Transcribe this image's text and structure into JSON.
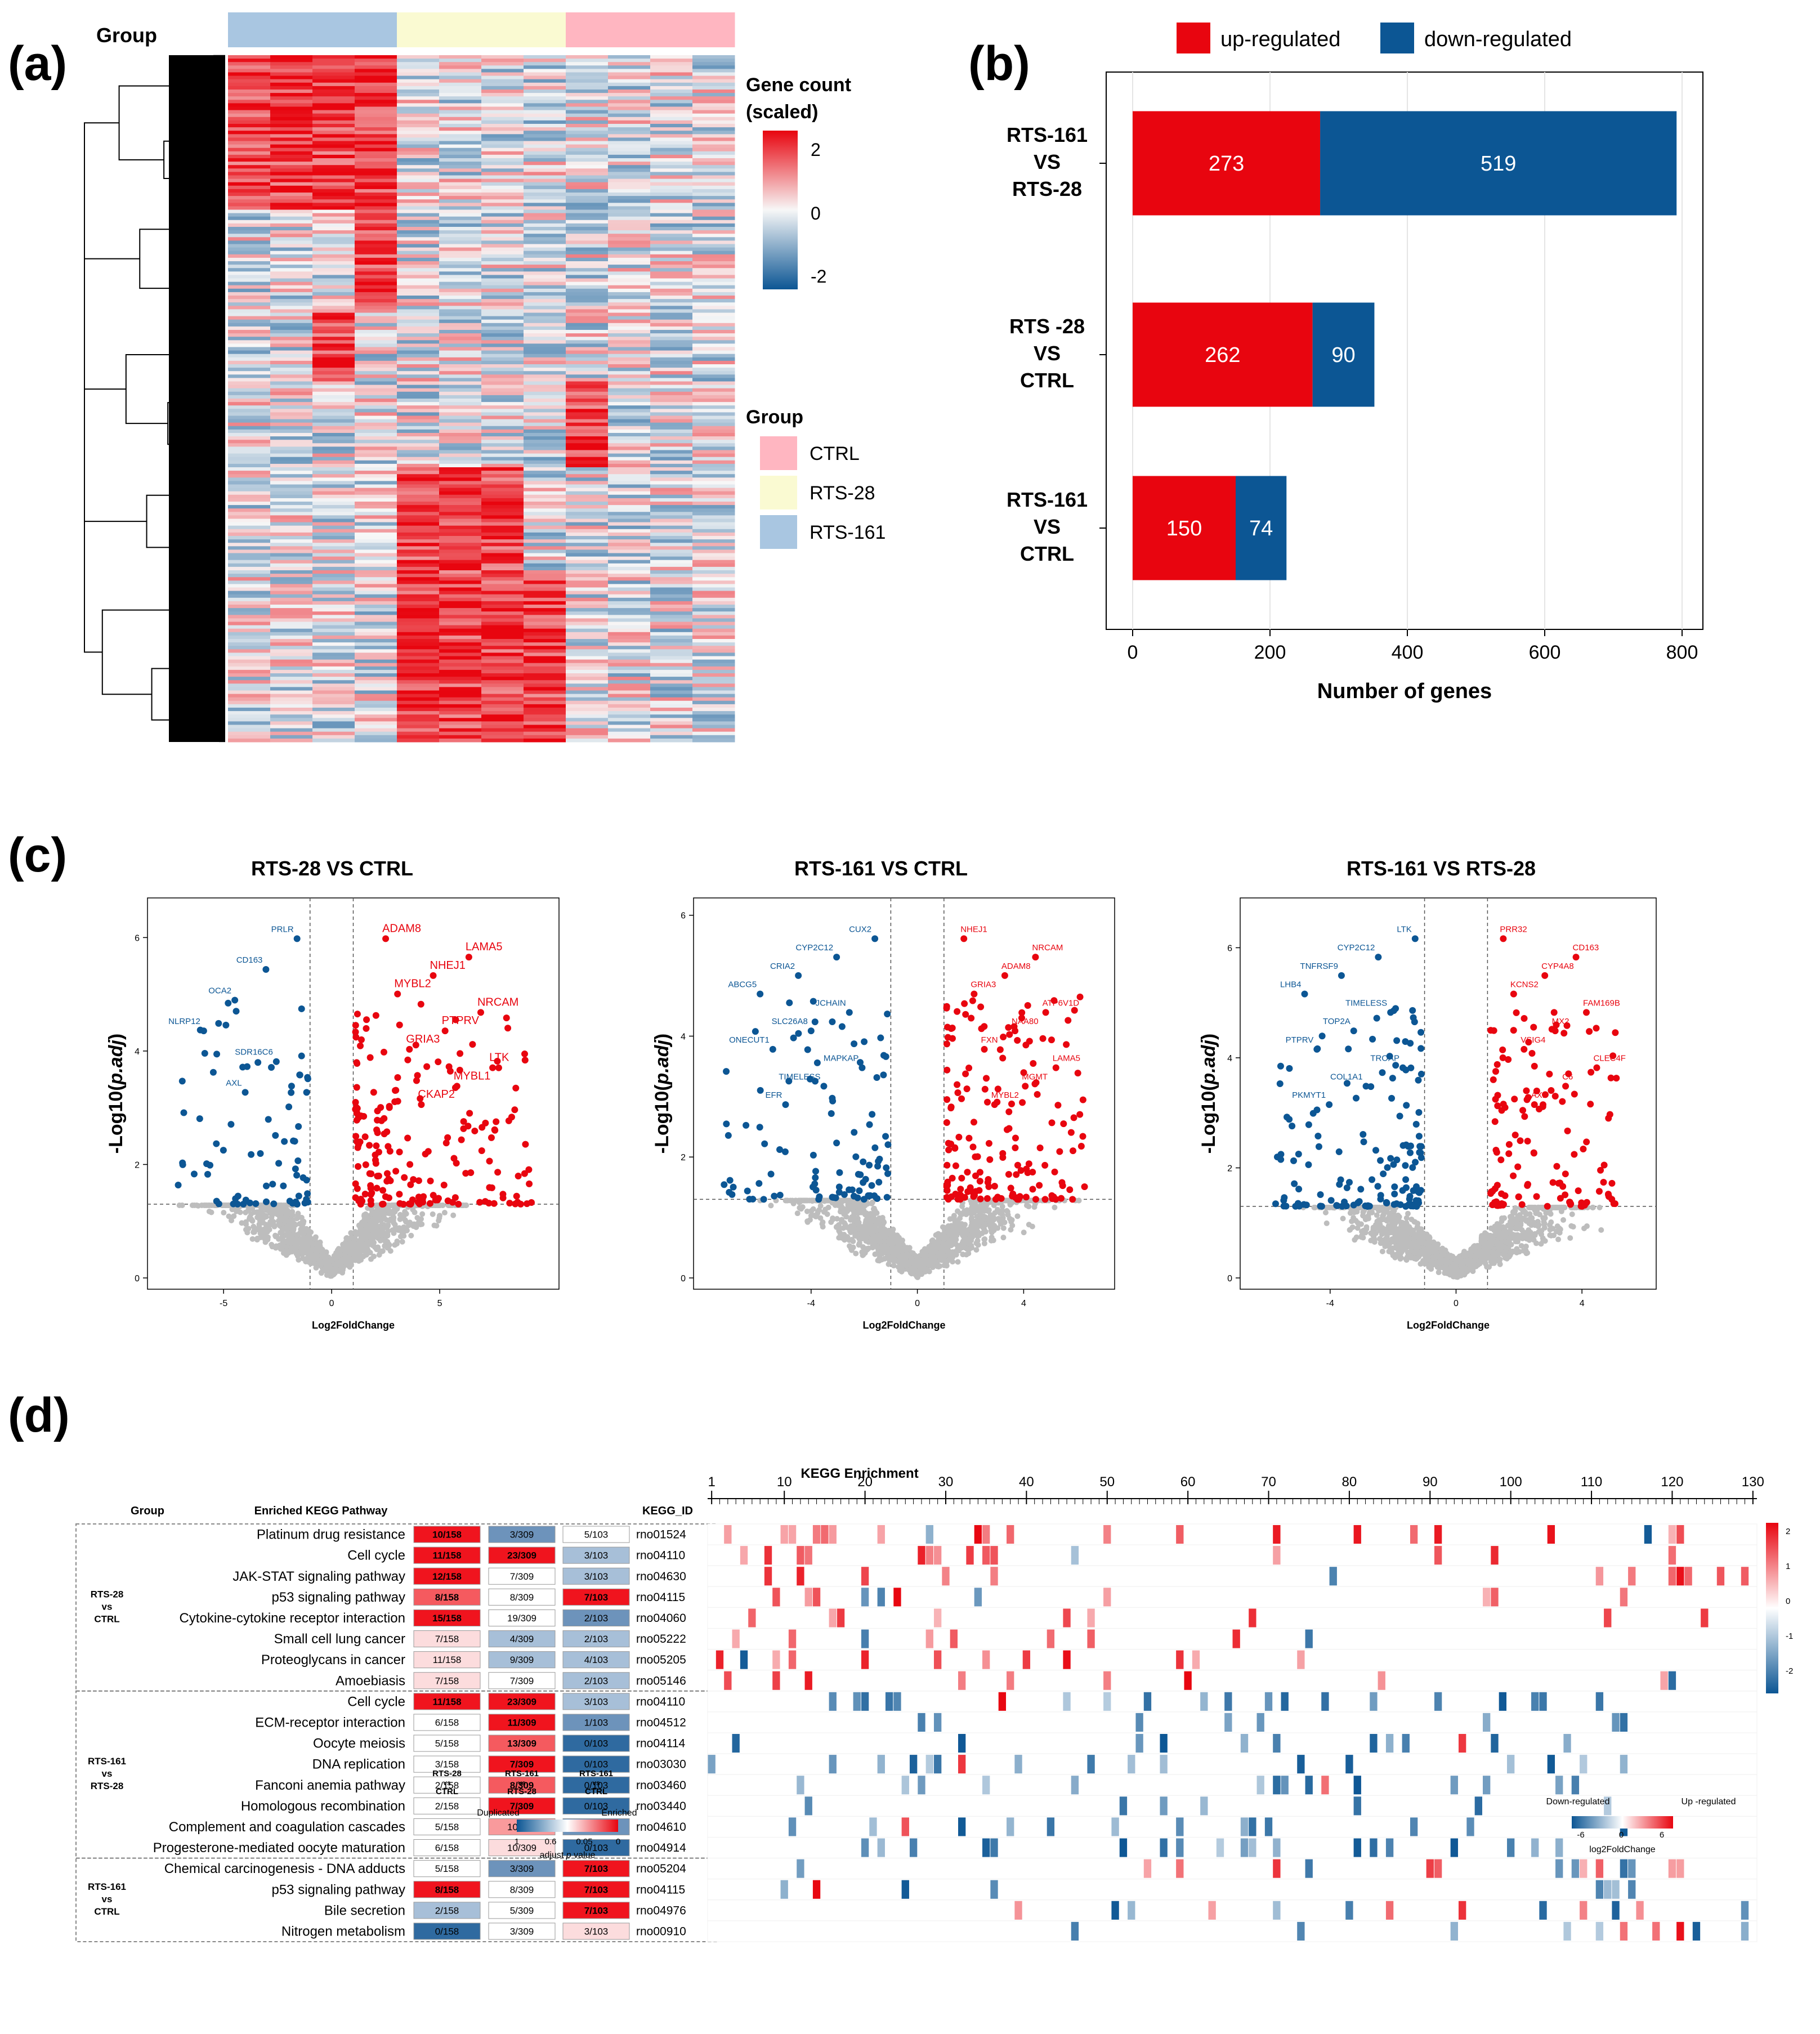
{
  "panels": {
    "a": "(a)",
    "b": "(b)",
    "c": "(c)",
    "d": "(d)"
  },
  "colors": {
    "up": "#e8050f",
    "down": "#0c5694",
    "grey": "#bdbdbd",
    "ctrl": "#ffb6c1",
    "rts28": "#fafad2",
    "rts161": "#a9c6e1"
  },
  "heatmap": {
    "group_label": "Group",
    "legend_title_line1": "Gene count",
    "legend_title_line2": "(scaled)",
    "legend_ticks": [
      "2",
      "0",
      "-2"
    ],
    "group_legend_title": "Group",
    "groups": [
      "CTRL",
      "RTS-28",
      "RTS-161"
    ]
  },
  "chart_data": [
    {
      "type": "bar",
      "id": "b",
      "orientation": "horizontal-stacked",
      "categories": [
        [
          "RTS-161",
          "VS",
          "RTS-28"
        ],
        [
          "RTS -28",
          "VS",
          "CTRL"
        ],
        [
          "RTS-161",
          "VS",
          "CTRL"
        ]
      ],
      "series": [
        {
          "name": "up-regulated",
          "values": [
            273,
            262,
            150
          ]
        },
        {
          "name": "down-regulated",
          "values": [
            519,
            90,
            74
          ]
        }
      ],
      "xlabel": "Number of genes",
      "xticks": [
        "0",
        "200",
        "400",
        "600",
        "800"
      ],
      "xlim": [
        0,
        820
      ]
    },
    {
      "type": "scatter",
      "id": "c1",
      "title": "RTS-28 VS CTRL",
      "xlabel": "Log2FoldChange",
      "ylabel_prefix": "-Log10(",
      "ylabel_italic": "p.adj",
      "ylabel_suffix": ")",
      "xlim": [
        -8,
        10
      ],
      "ylim": [
        0,
        6.5
      ],
      "xticks": [
        "-5",
        "0",
        "5"
      ],
      "yticks": [
        "0",
        "2",
        "4",
        "6"
      ],
      "labels_up": [
        "ADAM8",
        "LAMA5",
        "NHEJ1",
        "MYBL2",
        "NRCAM",
        "PTPRV",
        "GRIA3",
        "LTK",
        "MYBL1",
        "CKAP2"
      ],
      "labels_down": [
        "PRLR",
        "CD163",
        "OCA2",
        "NLRP12",
        "SDR16C6",
        "AXL"
      ]
    },
    {
      "type": "scatter",
      "id": "c2",
      "title": "RTS-161 VS CTRL",
      "xlabel": "Log2FoldChange",
      "ylabel_prefix": "-Log10(",
      "ylabel_italic": "p.adj",
      "ylabel_suffix": ")",
      "xlim": [
        -8,
        7
      ],
      "ylim": [
        0,
        6.1
      ],
      "xticks": [
        "-4",
        "0",
        "4"
      ],
      "yticks": [
        "0",
        "2",
        "4",
        "6"
      ],
      "labels_up": [
        "NHEJ1",
        "NRCAM",
        "ADAM8",
        "GRIA3",
        "ATP6V1D",
        "NAA80",
        "FXN",
        "LAMA5",
        "MGMT",
        "MYBL2"
      ],
      "labels_down": [
        "CUX2",
        "CYP2C12",
        "CRIA2",
        "ABCG5",
        "JCHAIN",
        "SLC26A8",
        "ONECUT1",
        "MAPKAP",
        "TIMELESS",
        "EFR"
      ]
    },
    {
      "type": "scatter",
      "id": "c3",
      "title": "RTS-161 VS RTS-28",
      "xlabel": "Log2FoldChange",
      "ylabel_prefix": "-Log10(",
      "ylabel_italic": "p.adj",
      "ylabel_suffix": ")",
      "xlim": [
        -6.5,
        6
      ],
      "ylim": [
        0,
        6.7
      ],
      "xticks": [
        "-4",
        "0",
        "4"
      ],
      "yticks": [
        "0",
        "2",
        "4",
        "6"
      ],
      "labels_up": [
        "PRR32",
        "CD163",
        "CYP4A8",
        "KCNS2",
        "FAM169B",
        "MX2",
        "VSIG4",
        "CLEC4F",
        "C6",
        "AXL"
      ],
      "labels_down": [
        "LTK",
        "CYP2C12",
        "TNFRSF9",
        "LHB4",
        "TIMELESS",
        "TOP2A",
        "PTPRV",
        "TROAP",
        "COL1A1",
        "PKMYT1"
      ]
    },
    {
      "type": "heatmap",
      "id": "d",
      "title": "KEGG Enrichment",
      "xticks": [
        "1",
        "10",
        "20",
        "30",
        "40",
        "50",
        "60",
        "70",
        "80",
        "90",
        "100",
        "110",
        "120",
        "130"
      ],
      "n_genes": 130,
      "color_scale_ticks": [
        "2",
        "1",
        "0",
        "-1",
        "-2"
      ],
      "table_headers": {
        "group": "Group",
        "pathway": "Enriched KEGG Pathway",
        "kegg": "KEGG_ID"
      },
      "column_headers": [
        [
          "RTS-28",
          "vs",
          "CTRL"
        ],
        [
          "RTS-161",
          "vs",
          "RTS-28"
        ],
        [
          "RTS-161",
          "vs",
          "CTRL"
        ]
      ],
      "groups": [
        {
          "label": [
            "RTS-28",
            "vs",
            "CTRL"
          ],
          "rows": [
            0,
            7
          ]
        },
        {
          "label": [
            "RTS-161",
            "vs",
            "RTS-28"
          ],
          "rows": [
            8,
            15
          ]
        },
        {
          "label": [
            "RTS-161",
            "vs",
            "CTRL"
          ],
          "rows": [
            16,
            19
          ]
        }
      ],
      "rows": [
        {
          "pathway": "Platinum drug resistance",
          "c1": "10/158",
          "c2": "3/309",
          "c3": "5/103",
          "id": "rno01524"
        },
        {
          "pathway": "Cell cycle",
          "c1": "11/158",
          "c2": "23/309",
          "c3": "3/103",
          "id": "rno04110"
        },
        {
          "pathway": "JAK-STAT signaling pathway",
          "c1": "12/158",
          "c2": "7/309",
          "c3": "3/103",
          "id": "rno04630"
        },
        {
          "pathway": "p53 signaling pathway",
          "c1": "8/158",
          "c2": "8/309",
          "c3": "7/103",
          "id": "rno04115"
        },
        {
          "pathway": "Cytokine-cytokine receptor interaction",
          "c1": "15/158",
          "c2": "19/309",
          "c3": "2/103",
          "id": "rno04060"
        },
        {
          "pathway": "Small cell lung cancer",
          "c1": "7/158",
          "c2": "4/309",
          "c3": "2/103",
          "id": "rno05222"
        },
        {
          "pathway": "Proteoglycans in cancer",
          "c1": "11/158",
          "c2": "9/309",
          "c3": "4/103",
          "id": "rno05205"
        },
        {
          "pathway": "Amoebiasis",
          "c1": "7/158",
          "c2": "7/309",
          "c3": "2/103",
          "id": "rno05146"
        },
        {
          "pathway": "Cell cycle",
          "c1": "11/158",
          "c2": "23/309",
          "c3": "3/103",
          "id": "rno04110"
        },
        {
          "pathway": "ECM-receptor interaction",
          "c1": "6/158",
          "c2": "11/309",
          "c3": "1/103",
          "id": "rno04512"
        },
        {
          "pathway": "Oocyte meiosis",
          "c1": "5/158",
          "c2": "13/309",
          "c3": "0/103",
          "id": "rno04114"
        },
        {
          "pathway": "DNA replication",
          "c1": "3/158",
          "c2": "7/309",
          "c3": "0/103",
          "id": "rno03030"
        },
        {
          "pathway": "Fanconi anemia pathway",
          "c1": "2/158",
          "c2": "8/309",
          "c3": "0/103",
          "id": "rno03460"
        },
        {
          "pathway": "Homologous recombination",
          "c1": "2/158",
          "c2": "7/309",
          "c3": "0/103",
          "id": "rno03440"
        },
        {
          "pathway": "Complement and coagulation cascades",
          "c1": "5/158",
          "c2": "10/309",
          "c3": "1/103",
          "id": "rno04610"
        },
        {
          "pathway": "Progesterone-mediated oocyte maturation",
          "c1": "6/158",
          "c2": "10/309",
          "c3": "0/103",
          "id": "rno04914"
        },
        {
          "pathway": "Chemical carcinogenesis - DNA adducts",
          "c1": "5/158",
          "c2": "3/309",
          "c3": "7/103",
          "id": "rno05204"
        },
        {
          "pathway": "p53 signaling pathway",
          "c1": "8/158",
          "c2": "8/309",
          "c3": "7/103",
          "id": "rno04115"
        },
        {
          "pathway": "Bile secretion",
          "c1": "2/158",
          "c2": "5/309",
          "c3": "7/103",
          "id": "rno04976"
        },
        {
          "pathway": "Nitrogen metabolism",
          "c1": "0/158",
          "c2": "3/309",
          "c3": "3/103",
          "id": "rno00910"
        }
      ],
      "cell_tones": [
        [
          "r3",
          "b2",
          "w"
        ],
        [
          "r3",
          "r3",
          "b1"
        ],
        [
          "r3",
          "w",
          "b1"
        ],
        [
          "r2",
          "w",
          "r3"
        ],
        [
          "r3",
          "w",
          "b2"
        ],
        [
          "r0",
          "b1",
          "b1"
        ],
        [
          "r0",
          "b1",
          "b1"
        ],
        [
          "r0",
          "w",
          "b1"
        ],
        [
          "r3",
          "r3",
          "b1"
        ],
        [
          "w",
          "r3",
          "b2"
        ],
        [
          "w",
          "r2",
          "b3"
        ],
        [
          "w",
          "r3",
          "b3"
        ],
        [
          "w",
          "r2",
          "b3"
        ],
        [
          "w",
          "r3",
          "b3"
        ],
        [
          "w",
          "r1",
          "b2"
        ],
        [
          "w",
          "r0",
          "b3"
        ],
        [
          "w",
          "b2",
          "r3"
        ],
        [
          "r3",
          "w",
          "r3"
        ],
        [
          "b1",
          "w",
          "r3"
        ],
        [
          "b3",
          "w",
          "r0"
        ]
      ],
      "pvalue_legend": {
        "left": "Duplicated",
        "right": "Enriched",
        "ticks": [
          "1",
          "0.6",
          "0.05",
          "0"
        ],
        "label_prefix": "adjust ",
        "label_italic": "p",
        "label_suffix": " value"
      },
      "fc_legend": {
        "left": "Down-regulated",
        "right": "Up -regulated",
        "ticks": [
          "-6",
          "0",
          "6"
        ],
        "label": "log2FoldChange"
      }
    }
  ]
}
